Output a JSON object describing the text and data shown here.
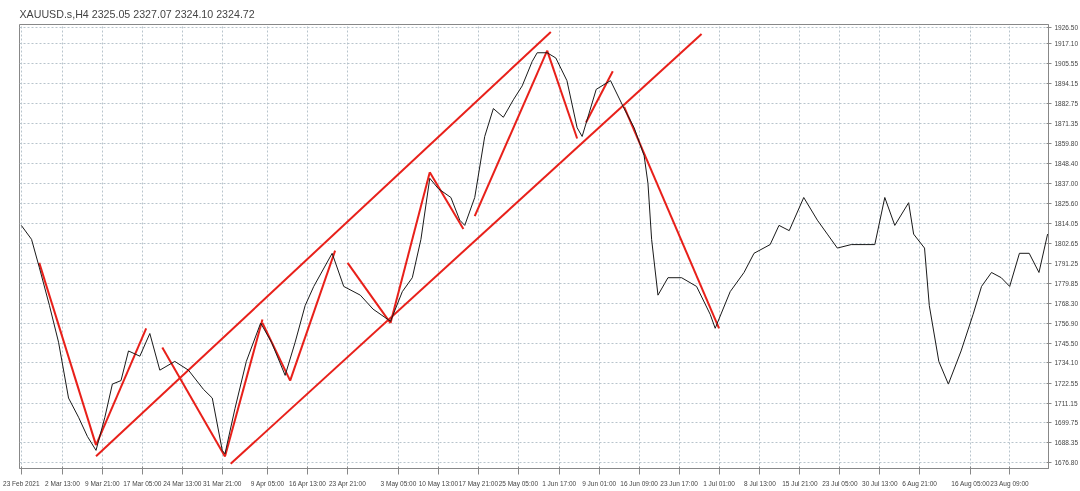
{
  "chart_data": {
    "type": "line",
    "title": "XAUUSD.s,H4  2325.05 2327.07 2324.10 2324.72",
    "xlim": [
      "2021-02-22T16:00",
      "2021-08-30T12:00"
    ],
    "ylim": [
      1673.6,
      1928.2
    ],
    "xticks": [
      {
        "value": "2021-02-23",
        "label": "23 Feb 2021"
      },
      {
        "value": "2021-03-02T13:00",
        "label": "2 Mar 13:00"
      },
      {
        "value": "2021-03-09T21:00",
        "label": "9 Mar 21:00"
      },
      {
        "value": "2021-03-17T05:00",
        "label": "17 Mar 05:00"
      },
      {
        "value": "2021-03-24T13:00",
        "label": "24 Mar 13:00"
      },
      {
        "value": "2021-03-31T21:00",
        "label": "31 Mar 21:00"
      },
      {
        "value": "2021-04-09T05:00",
        "label": "9 Apr 05:00"
      },
      {
        "value": "2021-04-16T13:00",
        "label": "16 Apr 13:00"
      },
      {
        "value": "2021-04-23T21:00",
        "label": "23 Apr 21:00"
      },
      {
        "value": "2021-05-03T05:00",
        "label": "3 May 05:00"
      },
      {
        "value": "2021-05-10T13:00",
        "label": "10 May 13:00"
      },
      {
        "value": "2021-05-17T21:00",
        "label": "17 May 21:00"
      },
      {
        "value": "2021-05-25T05:00",
        "label": "25 May 05:00"
      },
      {
        "value": "2021-06-01T17:00",
        "label": "1 Jun 17:00"
      },
      {
        "value": "2021-06-09T01:00",
        "label": "9 Jun 01:00"
      },
      {
        "value": "2021-06-16T09:00",
        "label": "16 Jun 09:00"
      },
      {
        "value": "2021-06-23T17:00",
        "label": "23 Jun 17:00"
      },
      {
        "value": "2021-07-01T01:00",
        "label": "1 Jul 01:00"
      },
      {
        "value": "2021-07-08T13:00",
        "label": "8 Jul 13:00"
      },
      {
        "value": "2021-07-15T21:00",
        "label": "15 Jul 21:00"
      },
      {
        "value": "2021-07-23T05:00",
        "label": "23 Jul 05:00"
      },
      {
        "value": "2021-07-30T13:00",
        "label": "30 Jul 13:00"
      },
      {
        "value": "2021-08-06T21:00",
        "label": "6 Aug 21:00"
      },
      {
        "value": "2021-08-16T05:00",
        "label": "16 Aug 05:00"
      },
      {
        "value": "2021-08-23T09:00",
        "label": "23 Aug 09:00"
      }
    ],
    "yticks": [
      {
        "value": 1676.8,
        "label": "1676.80"
      },
      {
        "value": 1688.35,
        "label": "1688.35"
      },
      {
        "value": 1699.75,
        "label": "1699.75"
      },
      {
        "value": 1711.15,
        "label": "1711.15"
      },
      {
        "value": 1722.55,
        "label": "1722.55"
      },
      {
        "value": 1734.1,
        "label": "1734.10"
      },
      {
        "value": 1745.5,
        "label": "1745.50"
      },
      {
        "value": 1756.9,
        "label": "1756.90"
      },
      {
        "value": 1768.3,
        "label": "1768.30"
      },
      {
        "value": 1779.85,
        "label": "1779.85"
      },
      {
        "value": 1791.25,
        "label": "1791.25"
      },
      {
        "value": 1802.65,
        "label": "1802.65"
      },
      {
        "value": 1814.05,
        "label": "1814.05"
      },
      {
        "value": 1825.6,
        "label": "1825.60"
      },
      {
        "value": 1837,
        "label": "1837.00"
      },
      {
        "value": 1848.4,
        "label": "1848.40"
      },
      {
        "value": 1859.8,
        "label": "1859.80"
      },
      {
        "value": 1871.35,
        "label": "1871.35"
      },
      {
        "value": 1882.75,
        "label": "1882.75"
      },
      {
        "value": 1894.15,
        "label": "1894.15"
      },
      {
        "value": 1905.55,
        "label": "1905.55"
      },
      {
        "value": 1917.1,
        "label": "1917.10"
      },
      {
        "value": 1926.5,
        "label": "1926.50"
      }
    ],
    "grid": true,
    "series": [
      {
        "color": "#1a1a1a",
        "x": [
          "2021-02-23T00:00",
          "2021-02-24T21:00",
          "2021-02-26T07:00",
          "2021-02-28T04:00",
          "2021-03-01T20:00",
          "2021-03-03T16:00",
          "2021-03-05T12:00",
          "2021-03-07T03:00",
          "2021-03-08T17:00",
          "2021-03-10T08:00",
          "2021-03-11T17:00",
          "2021-03-13T07:00",
          "2021-03-14T16:00",
          "2021-03-16T18:00",
          "2021-03-18T14:00",
          "2021-03-20T10:00",
          "2021-03-23T04:00",
          "2021-03-25T16:00",
          "2021-03-28T10:00",
          "2021-03-30T01:00",
          "2021-03-31T21:00",
          "2021-04-01T09:00",
          "2021-04-03T05:00",
          "2021-04-05T07:00",
          "2021-04-07T22:00",
          "2021-04-09T22:00",
          "2021-04-12T10:00",
          "2021-04-14T06:00",
          "2021-04-16T02:00",
          "2021-04-17T16:00",
          "2021-04-21T01:00",
          "2021-04-23T04:00",
          "2021-04-26T05:00",
          "2021-04-28T13:00",
          "2021-05-01T18:00",
          "2021-05-03T22:00",
          "2021-05-05T18:00",
          "2021-05-07T08:00",
          "2021-05-08T23:00",
          "2021-05-10T13:00",
          "2021-05-12T20:00",
          "2021-05-14T11:00",
          "2021-05-15T09:00",
          "2021-05-17T05:00",
          "2021-05-19T01:00",
          "2021-05-20T15:00",
          "2021-05-22T11:00",
          "2021-05-24T07:00",
          "2021-05-25T22:00",
          "2021-05-27T18:00",
          "2021-05-28T16:00",
          "2021-05-30T12:00",
          "2021-06-01T02:00",
          "2021-06-03T03:00",
          "2021-06-05T00:00",
          "2021-06-05T22:00",
          "2021-06-08T12:00",
          "2021-06-11T03:00",
          "2021-06-13T15:00",
          "2021-06-15T11:00",
          "2021-06-17T07:00",
          "2021-06-18T00:00",
          "2021-06-18T16:00",
          "2021-06-19T20:00",
          "2021-06-21T16:00",
          "2021-06-24T04:00",
          "2021-06-26T22:00",
          "2021-06-29T10:00",
          "2021-06-30T08:00",
          "2021-07-03T02:00",
          "2021-07-05T15:00",
          "2021-07-07T11:00",
          "2021-07-10T10:00",
          "2021-07-12T01:00",
          "2021-07-13T22:00",
          "2021-07-16T14:00",
          "2021-07-19T02:00",
          "2021-07-20T22:00",
          "2021-07-22T18:00",
          "2021-07-25T07:00",
          "2021-07-28T00:00",
          "2021-07-29T15:00",
          "2021-07-31T11:00",
          "2021-08-02T07:00",
          "2021-08-04T20:00",
          "2021-08-05T18:00",
          "2021-08-07T18:00",
          "2021-08-08T15:00",
          "2021-08-10T09:00",
          "2021-08-12T03:00",
          "2021-08-14T11:00",
          "2021-08-16T16:00",
          "2021-08-18T05:00",
          "2021-08-20T01:00",
          "2021-08-21T20:00",
          "2021-08-23T09:00",
          "2021-08-25T04:00",
          "2021-08-26T23:00",
          "2021-08-28T18:00",
          "2021-08-30T08:00"
        ],
        "values": [
          1813,
          1805,
          1789,
          1767,
          1746,
          1714,
          1703,
          1692,
          1684,
          1703,
          1722,
          1724,
          1741,
          1738,
          1751,
          1730,
          1735,
          1730,
          1719,
          1714,
          1684,
          1682,
          1708,
          1735,
          1757,
          1746,
          1727,
          1746,
          1767,
          1778,
          1797,
          1778,
          1773,
          1765,
          1758,
          1775,
          1783,
          1805,
          1840,
          1834,
          1829,
          1816,
          1813,
          1829,
          1864,
          1880,
          1875,
          1885,
          1893,
          1907,
          1912,
          1912,
          1909,
          1896,
          1869,
          1864,
          1891,
          1896,
          1880,
          1869,
          1853,
          1837,
          1805,
          1773,
          1783,
          1783,
          1778,
          1762,
          1754,
          1775,
          1786,
          1797,
          1802,
          1813,
          1810,
          1829,
          1816,
          1808,
          1800,
          1802,
          1802,
          1802,
          1829,
          1813,
          1826,
          1808,
          1800,
          1767,
          1735,
          1722,
          1741,
          1762,
          1778,
          1786,
          1783,
          1778,
          1797,
          1797,
          1786,
          1808
        ]
      },
      {
        "color": "#e8201a",
        "x": [
          "2021-03-08T17:00",
          "2021-05-31T04:00"
        ],
        "values": [
          1680.6,
          1923.9
        ]
      },
      {
        "color": "#e8201a",
        "x": [
          "2021-04-02T10:00",
          "2021-06-27T20:00"
        ],
        "values": [
          1676.3,
          1922.8
        ]
      },
      {
        "color": "#e8201a",
        "x": [
          "2021-02-26T07:00",
          "2021-03-08T17:00"
        ],
        "values": [
          1791.5,
          1687
        ]
      },
      {
        "color": "#e8201a",
        "x": [
          "2021-03-08T17:00",
          "2021-03-17T22:00"
        ],
        "values": [
          1687,
          1754
        ]
      },
      {
        "color": "#e8201a",
        "x": [
          "2021-03-20T21:00",
          "2021-04-01T09:00"
        ],
        "values": [
          1743,
          1680.5
        ]
      },
      {
        "color": "#e8201a",
        "x": [
          "2021-04-01T09:00",
          "2021-04-08T06:00"
        ],
        "values": [
          1680.5,
          1759
        ]
      },
      {
        "color": "#e8201a",
        "x": [
          "2021-04-08T06:00",
          "2021-04-13T08:00"
        ],
        "values": [
          1757,
          1724
        ]
      },
      {
        "color": "#e8201a",
        "x": [
          "2021-04-13T08:00",
          "2021-04-21T14:00"
        ],
        "values": [
          1724,
          1798.5
        ]
      },
      {
        "color": "#e8201a",
        "x": [
          "2021-04-23T21:00",
          "2021-05-01T18:00"
        ],
        "values": [
          1791.5,
          1757
        ]
      },
      {
        "color": "#e8201a",
        "x": [
          "2021-05-01T18:00",
          "2021-05-08T23:00"
        ],
        "values": [
          1757,
          1843.5
        ]
      },
      {
        "color": "#e8201a",
        "x": [
          "2021-05-08T23:00",
          "2021-05-15T03:00"
        ],
        "values": [
          1843.5,
          1811
        ]
      },
      {
        "color": "#e8201a",
        "x": [
          "2021-05-17T05:00",
          "2021-05-30T12:00"
        ],
        "values": [
          1818.3,
          1913.2
        ]
      },
      {
        "color": "#e8201a",
        "x": [
          "2021-05-30T12:00",
          "2021-06-05T00:00"
        ],
        "values": [
          1913.2,
          1862.8
        ]
      },
      {
        "color": "#e8201a",
        "x": [
          "2021-06-06T15:00",
          "2021-06-11T13:00"
        ],
        "values": [
          1872,
          1901.4
        ]
      },
      {
        "color": "#e8201a",
        "x": [
          "2021-06-13T15:00",
          "2021-07-01T01:00"
        ],
        "values": [
          1881,
          1754
        ]
      }
    ]
  }
}
